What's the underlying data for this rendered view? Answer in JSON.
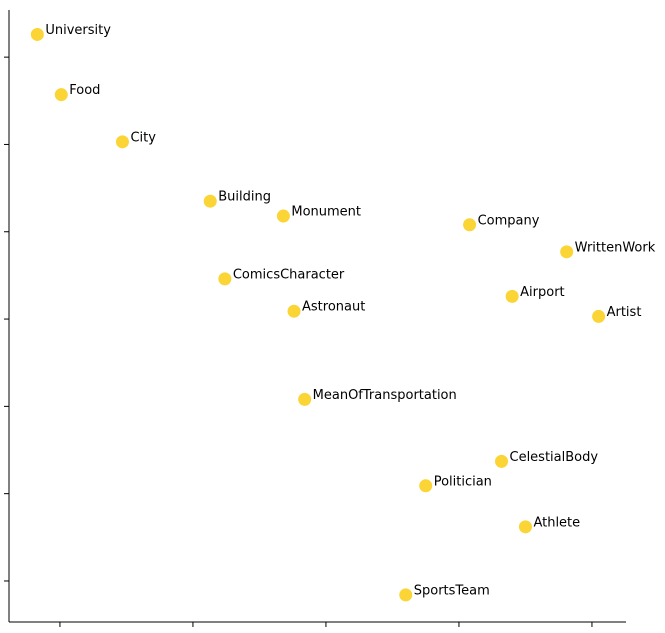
{
  "chart_data": {
    "type": "scatter",
    "labels": [
      "University",
      "Food",
      "City",
      "Building",
      "Monument",
      "Company",
      "WrittenWork",
      "ComicsCharacter",
      "Astronaut",
      "Airport",
      "Artist",
      "MeanOfTransportation",
      "CelestialBody",
      "Politician",
      "Athlete",
      "SportsTeam"
    ],
    "x": [
      -0.17,
      0.01,
      0.47,
      1.13,
      1.68,
      3.08,
      3.81,
      1.24,
      1.76,
      3.4,
      4.05,
      1.84,
      3.32,
      2.75,
      3.5,
      2.6
    ],
    "y": [
      6.26,
      5.57,
      5.03,
      4.35,
      4.18,
      4.08,
      3.77,
      3.46,
      3.09,
      3.26,
      3.03,
      2.08,
      1.37,
      1.09,
      0.62,
      -0.16
    ],
    "color": "#fbd435",
    "xlim": [
      -0.383,
      4.256
    ],
    "ylim": [
      -0.47,
      6.54
    ],
    "xticks": [
      0,
      1,
      2,
      3,
      4
    ],
    "yticks": [
      0,
      1,
      2,
      3,
      4,
      5,
      6
    ],
    "grid": false
  }
}
